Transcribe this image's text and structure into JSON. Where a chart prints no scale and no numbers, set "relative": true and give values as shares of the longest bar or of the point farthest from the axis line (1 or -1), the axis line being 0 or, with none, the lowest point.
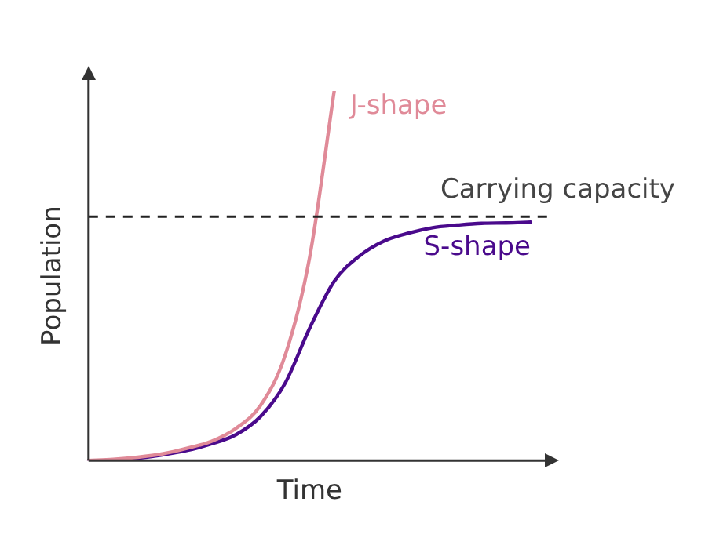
{
  "chart_data": {
    "type": "line",
    "relative": true,
    "xlabel": "Time",
    "ylabel": "Population",
    "legend": false,
    "grid": false,
    "marker": "none",
    "categories": [
      null,
      null,
      null,
      null,
      null,
      null,
      null,
      null,
      null,
      null,
      null,
      null,
      null,
      null,
      null,
      null,
      null,
      null,
      null
    ],
    "series": [
      {
        "name": "J-shape",
        "color": "#e08a98",
        "values": [
          0,
          0.003,
          0.009,
          0.018,
          0.033,
          0.052,
          0.087,
          0.149,
          0.284,
          0.55,
          1,
          null,
          null,
          null,
          null,
          null,
          null,
          null,
          null
        ]
      },
      {
        "name": "S-shape",
        "color": "#4a0a8c",
        "values": [
          0,
          0,
          0.006,
          0.015,
          0.027,
          0.045,
          0.07,
          0.119,
          0.209,
          0.358,
          0.485,
          0.552,
          0.593,
          0.615,
          0.63,
          0.637,
          0.642,
          0.643,
          0.645
        ]
      }
    ],
    "ref_lines": [
      {
        "axis": "y",
        "value": 0.66,
        "label": "Carrying capacity",
        "color": "#222222",
        "line_style": "dashed"
      }
    ]
  }
}
